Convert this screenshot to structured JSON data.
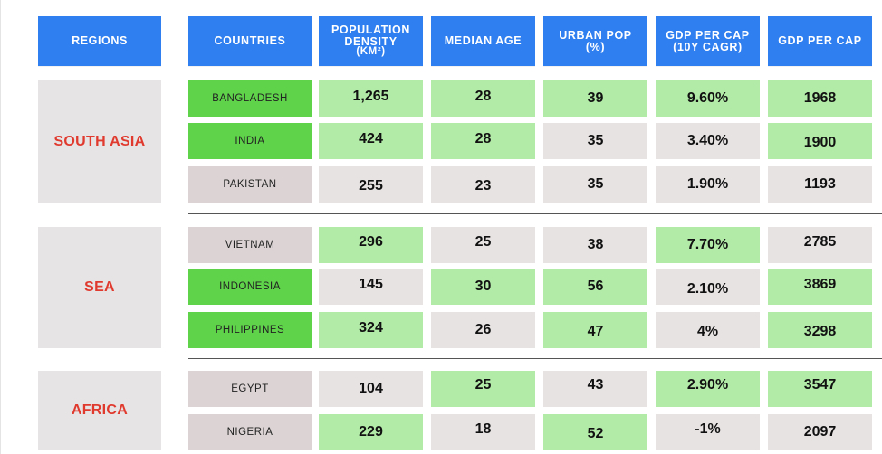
{
  "chart_data": {
    "type": "table",
    "columns": [
      [
        "REGIONS"
      ],
      [
        "COUNTRIES"
      ],
      [
        "POPULATION",
        "DENSITY",
        "(KM²)"
      ],
      [
        "MEDIAN AGE"
      ],
      [
        "URBAN POP",
        "(%)"
      ],
      [
        "GDP PER CAP",
        "(10Y CAGR)"
      ],
      [
        "GDP PER CAP"
      ]
    ],
    "regions": [
      "SOUTH ASIA",
      "SEA",
      "AFRICA"
    ],
    "rows": [
      {
        "region": "SOUTH ASIA",
        "cells": [
          "BANGLADESH",
          "1,265",
          "28",
          "39",
          "9.60%",
          "1968"
        ]
      },
      {
        "region": "SOUTH ASIA",
        "cells": [
          "INDIA",
          "424",
          "28",
          "35",
          "3.40%",
          "1900"
        ]
      },
      {
        "region": "SOUTH ASIA",
        "cells": [
          "PAKISTAN",
          "255",
          "23",
          "35",
          "1.90%",
          "1193"
        ]
      },
      {
        "region": "SEA",
        "cells": [
          "VIETNAM",
          "296",
          "25",
          "38",
          "7.70%",
          "2785"
        ]
      },
      {
        "region": "SEA",
        "cells": [
          "INDONESIA",
          "145",
          "30",
          "56",
          "2.10%",
          "3869"
        ]
      },
      {
        "region": "SEA",
        "cells": [
          "PHILIPPINES",
          "324",
          "26",
          "47",
          "4%",
          "3298"
        ]
      },
      {
        "region": "AFRICA",
        "cells": [
          "EGYPT",
          "104",
          "25",
          "43",
          "2.90%",
          "3547"
        ]
      },
      {
        "region": "AFRICA",
        "cells": [
          "NIGERIA",
          "229",
          "18",
          "52",
          "-1%",
          "2097"
        ]
      }
    ],
    "shading": [
      [
        "dark",
        "light",
        "light",
        "light",
        "light",
        "light"
      ],
      [
        "dark",
        "light",
        "light",
        "grey",
        "grey",
        "light"
      ],
      [
        "mauve",
        "grey",
        "grey",
        "grey",
        "grey",
        "grey"
      ],
      [
        "mauve",
        "light",
        "grey",
        "grey",
        "light",
        "grey"
      ],
      [
        "dark",
        "grey",
        "light",
        "light",
        "grey",
        "light"
      ],
      [
        "dark",
        "light",
        "grey",
        "light",
        "grey",
        "light"
      ],
      [
        "mauve",
        "grey",
        "light",
        "grey",
        "light",
        "light"
      ],
      [
        "mauve",
        "light",
        "grey",
        "light",
        "grey",
        "grey"
      ]
    ],
    "value_offsets": [
      [
        0,
        -2,
        -2,
        0,
        0,
        0
      ],
      [
        0,
        -2,
        -2,
        0,
        0,
        2
      ],
      [
        0,
        2,
        2,
        0,
        0,
        0
      ],
      [
        0,
        -3,
        -3,
        0,
        0,
        -3
      ],
      [
        0,
        -2,
        0,
        0,
        3,
        -2
      ],
      [
        0,
        -2,
        0,
        2,
        2,
        2
      ],
      [
        0,
        0,
        -4,
        -4,
        -4,
        -4
      ],
      [
        0,
        0,
        -3,
        2,
        -3,
        0
      ]
    ],
    "colors": {
      "header_bg": "#2f7ff0",
      "header_text": "#ffffff",
      "region_bg": "#e6e4e4",
      "region_text": "#e03a2f",
      "dark": "#5fd44b",
      "light": "#b1eba7",
      "grey": "#e8e3e3",
      "mauve": "#dcd4d4",
      "separator": "#555555"
    }
  }
}
